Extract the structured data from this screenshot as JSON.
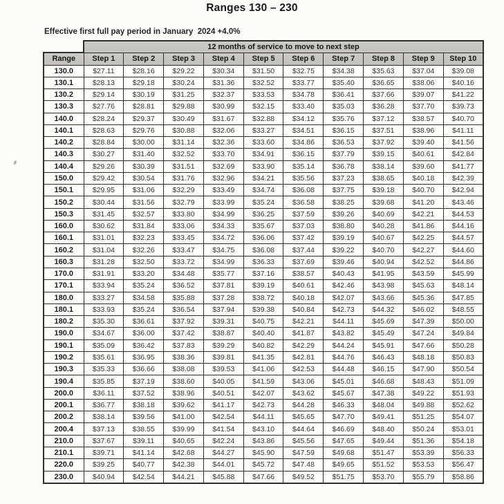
{
  "page": {
    "title": "Ranges 130 – 230",
    "effective_note": "Effective first full pay period in January  2024 +4.0%"
  },
  "table": {
    "banner": "12 months of service to move to next step",
    "range_header": "Range",
    "step_headers": [
      "Step 1",
      "Step 2",
      "Step 3",
      "Step 4",
      "Step 5",
      "Step 6",
      "Step 7",
      "Step 8",
      "Step 9",
      "Step 10"
    ],
    "rows": [
      {
        "range": "130.0",
        "steps": [
          "$27.11",
          "$28.16",
          "$29.22",
          "$30.34",
          "$31.50",
          "$32.75",
          "$34.38",
          "$35.63",
          "$37.04",
          "$39.08"
        ]
      },
      {
        "range": "130.1",
        "steps": [
          "$28.13",
          "$29.18",
          "$30.24",
          "$31.36",
          "$32.52",
          "$33.77",
          "$35.40",
          "$36.65",
          "$38.06",
          "$40.16"
        ]
      },
      {
        "range": "130.2",
        "steps": [
          "$29.14",
          "$30.19",
          "$31.25",
          "$32.37",
          "$33.53",
          "$34.78",
          "$36.41",
          "$37.66",
          "$39.07",
          "$41.22"
        ]
      },
      {
        "range": "130.3",
        "steps": [
          "$27.76",
          "$28.81",
          "$29.88",
          "$30.99",
          "$32.15",
          "$33.40",
          "$35.03",
          "$36.28",
          "$37.70",
          "$39.73"
        ]
      },
      {
        "range": "140.0",
        "steps": [
          "$28.24",
          "$29.37",
          "$30.49",
          "$31.67",
          "$32.88",
          "$34.12",
          "$35.76",
          "$37.12",
          "$38.57",
          "$40.70"
        ]
      },
      {
        "range": "140.1",
        "steps": [
          "$28.63",
          "$29.76",
          "$30.88",
          "$32.06",
          "$33.27",
          "$34.51",
          "$36.15",
          "$37.51",
          "$38.96",
          "$41.11"
        ]
      },
      {
        "range": "140.2",
        "steps": [
          "$28.84",
          "$30.00",
          "$31.14",
          "$32.36",
          "$33.60",
          "$34.86",
          "$36.53",
          "$37.92",
          "$39.40",
          "$41.56"
        ]
      },
      {
        "range": "140.3",
        "steps": [
          "$30.27",
          "$31.40",
          "$32.52",
          "$33.70",
          "$34.91",
          "$36.15",
          "$37.79",
          "$39.15",
          "$40.61",
          "$42.84"
        ]
      },
      {
        "range": "140.4",
        "steps": [
          "$29.26",
          "$30.39",
          "$31.51",
          "$32.69",
          "$33.90",
          "$35.14",
          "$36.78",
          "$38.14",
          "$39.60",
          "$41.77"
        ]
      },
      {
        "range": "150.0",
        "steps": [
          "$29.42",
          "$30.54",
          "$31.76",
          "$32.96",
          "$34.21",
          "$35.56",
          "$37.23",
          "$38.65",
          "$40.18",
          "$42.39"
        ]
      },
      {
        "range": "150.1",
        "steps": [
          "$29.95",
          "$31.06",
          "$32.29",
          "$33.49",
          "$34.74",
          "$36.08",
          "$37.75",
          "$39.18",
          "$40.70",
          "$42.94"
        ]
      },
      {
        "range": "150.2",
        "steps": [
          "$30.44",
          "$31.56",
          "$32.79",
          "$33.99",
          "$35.24",
          "$36.58",
          "$38.25",
          "$39.68",
          "$41.20",
          "$43.46"
        ]
      },
      {
        "range": "150.3",
        "steps": [
          "$31.45",
          "$32.57",
          "$33.80",
          "$34.99",
          "$36.25",
          "$37.59",
          "$39.26",
          "$40.69",
          "$42.21",
          "$44.53"
        ]
      },
      {
        "range": "160.0",
        "steps": [
          "$30.62",
          "$31.84",
          "$33.06",
          "$34.33",
          "$35.67",
          "$37.03",
          "$38.80",
          "$40.28",
          "$41.86",
          "$44.16"
        ]
      },
      {
        "range": "160.1",
        "steps": [
          "$31.01",
          "$32.23",
          "$33.45",
          "$34.72",
          "$36.06",
          "$37.42",
          "$39.19",
          "$40.67",
          "$42.25",
          "$44.57"
        ]
      },
      {
        "range": "160.2",
        "steps": [
          "$31.04",
          "$32.26",
          "$33.47",
          "$34.75",
          "$36.08",
          "$37.44",
          "$39.22",
          "$40.70",
          "$42.27",
          "$44.60"
        ]
      },
      {
        "range": "160.3",
        "steps": [
          "$31.28",
          "$32.50",
          "$33.72",
          "$34.99",
          "$36.33",
          "$37.69",
          "$39.46",
          "$40.94",
          "$42.52",
          "$44.86"
        ]
      },
      {
        "range": "170.0",
        "steps": [
          "$31.91",
          "$33.20",
          "$34.48",
          "$35.77",
          "$37.16",
          "$38.57",
          "$40.43",
          "$41.95",
          "$43.59",
          "$45.99"
        ]
      },
      {
        "range": "170.1",
        "steps": [
          "$33.94",
          "$35.24",
          "$36.52",
          "$37.81",
          "$39.19",
          "$40.61",
          "$42.46",
          "$43.98",
          "$45.63",
          "$48.14"
        ]
      },
      {
        "range": "180.0",
        "steps": [
          "$33.27",
          "$34.58",
          "$35.88",
          "$37.28",
          "$38.72",
          "$40.18",
          "$42.07",
          "$43.66",
          "$45.36",
          "$47.85"
        ]
      },
      {
        "range": "180.1",
        "steps": [
          "$33.93",
          "$35.24",
          "$36.54",
          "$37.94",
          "$39.38",
          "$40.84",
          "$42.73",
          "$44.32",
          "$46.02",
          "$48.55"
        ]
      },
      {
        "range": "180.2",
        "steps": [
          "$35.30",
          "$36.61",
          "$37.92",
          "$39.31",
          "$40.75",
          "$42.21",
          "$44.11",
          "$45.69",
          "$47.39",
          "$50.00"
        ]
      },
      {
        "range": "190.0",
        "steps": [
          "$34.67",
          "$36.00",
          "$37.42",
          "$38.87",
          "$40.40",
          "$41.87",
          "$43.82",
          "$45.49",
          "$47.24",
          "$49.84"
        ]
      },
      {
        "range": "190.1",
        "steps": [
          "$35.09",
          "$36.42",
          "$37.83",
          "$39.29",
          "$40.82",
          "$42.29",
          "$44.24",
          "$45.91",
          "$47.66",
          "$50.28"
        ]
      },
      {
        "range": "190.2",
        "steps": [
          "$35.61",
          "$36.95",
          "$38.36",
          "$39.81",
          "$41.35",
          "$42.81",
          "$44.76",
          "$46.43",
          "$48.18",
          "$50.83"
        ]
      },
      {
        "range": "190.3",
        "steps": [
          "$35.33",
          "$36.66",
          "$38.08",
          "$39.53",
          "$41.06",
          "$42.53",
          "$44.48",
          "$46.15",
          "$47.90",
          "$50.54"
        ]
      },
      {
        "range": "190.4",
        "steps": [
          "$35.85",
          "$37.19",
          "$38.60",
          "$40.05",
          "$41.59",
          "$43.06",
          "$45.01",
          "$46.68",
          "$48.43",
          "$51.09"
        ]
      },
      {
        "range": "200.0",
        "steps": [
          "$36.11",
          "$37.52",
          "$38.96",
          "$40.51",
          "$42.07",
          "$43.62",
          "$45.67",
          "$47.38",
          "$49.22",
          "$51.93"
        ]
      },
      {
        "range": "200.1",
        "steps": [
          "$36.77",
          "$38.18",
          "$39.62",
          "$41.17",
          "$42.73",
          "$44.28",
          "$46.33",
          "$48.04",
          "$49.88",
          "$52.62"
        ]
      },
      {
        "range": "200.2",
        "steps": [
          "$38.14",
          "$39.56",
          "$41.00",
          "$42.54",
          "$44.11",
          "$45.65",
          "$47.70",
          "$49.41",
          "$51.25",
          "$54.07"
        ]
      },
      {
        "range": "200.4",
        "steps": [
          "$37.13",
          "$38.55",
          "$39.99",
          "$41.54",
          "$43.10",
          "$44.64",
          "$46.69",
          "$48.40",
          "$50.24",
          "$53.01"
        ]
      },
      {
        "range": "210.0",
        "steps": [
          "$37.67",
          "$39.11",
          "$40.65",
          "$42.24",
          "$43.86",
          "$45.56",
          "$47.65",
          "$49.44",
          "$51.36",
          "$54.18"
        ]
      },
      {
        "range": "210.1",
        "steps": [
          "$39.71",
          "$41.14",
          "$42.68",
          "$44.27",
          "$45.90",
          "$47.59",
          "$49.68",
          "$51.47",
          "$53.39",
          "$56.33"
        ]
      },
      {
        "range": "220.0",
        "steps": [
          "$39.25",
          "$40.77",
          "$42.38",
          "$44.01",
          "$45.72",
          "$47.48",
          "$49.65",
          "$51.52",
          "$53.53",
          "$56.47"
        ]
      },
      {
        "range": "230.0",
        "steps": [
          "$40.94",
          "$42.54",
          "$44.21",
          "$45.88",
          "$47.66",
          "$49.52",
          "$51.75",
          "$53.70",
          "$55.79",
          "$58.86"
        ]
      }
    ]
  },
  "colors": {
    "header_fill": "#c7c6c3",
    "border": "#2e2d2b",
    "text": "#1f1f1f",
    "background": "#fcfcfb"
  }
}
